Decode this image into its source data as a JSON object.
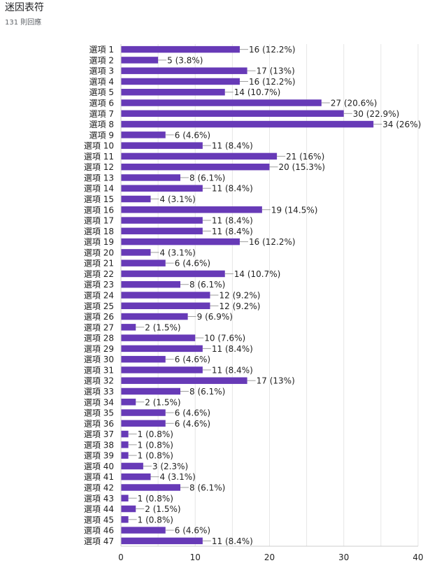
{
  "title": "迷因表符",
  "subtitle": "131 則回應",
  "colors": {
    "bar": "#673ab7",
    "grid": "#e6e6e6",
    "axis": "#cccccc",
    "text": "#222222",
    "label_line": "#9e9e9e"
  },
  "chart_data": {
    "type": "bar",
    "orientation": "horizontal",
    "title": "迷因表符",
    "subtitle": "131 則回應",
    "xlim": [
      0,
      40
    ],
    "x_ticks": [
      "0",
      "10",
      "20",
      "30",
      "40"
    ],
    "grid": true,
    "categories": [
      "選項 1",
      "選項 2",
      "選項 3",
      "選項 4",
      "選項 5",
      "選項 6",
      "選項 7",
      "選項 8",
      "選項 9",
      "選項 10",
      "選項 11",
      "選項 12",
      "選項 13",
      "選項 14",
      "選項 15",
      "選項 16",
      "選項 17",
      "選項 18",
      "選項 19",
      "選項 20",
      "選項 21",
      "選項 22",
      "選項 23",
      "選項 24",
      "選項 25",
      "選項 26",
      "選項 27",
      "選項 28",
      "選項 29",
      "選項 30",
      "選項 31",
      "選項 32",
      "選項 33",
      "選項 34",
      "選項 35",
      "選項 36",
      "選項 37",
      "選項 38",
      "選項 39",
      "選項 40",
      "選項 41",
      "選項 42",
      "選項 43",
      "選項 44",
      "選項 45",
      "選項 46",
      "選項 47"
    ],
    "values": [
      16,
      5,
      17,
      16,
      14,
      27,
      30,
      34,
      6,
      11,
      21,
      20,
      8,
      11,
      4,
      19,
      11,
      11,
      16,
      4,
      6,
      14,
      8,
      12,
      12,
      9,
      2,
      10,
      11,
      6,
      11,
      17,
      8,
      2,
      6,
      6,
      1,
      1,
      1,
      3,
      4,
      8,
      1,
      2,
      1,
      6,
      11
    ],
    "data_labels": [
      "16 (12.2%)",
      "5 (3.8%)",
      "17 (13%)",
      "16 (12.2%)",
      "14 (10.7%)",
      "27 (20.6%)",
      "30 (22.9%)",
      "34 (26%)",
      "6 (4.6%)",
      "11 (8.4%)",
      "21 (16%)",
      "20 (15.3%)",
      "8 (6.1%)",
      "11 (8.4%)",
      "4 (3.1%)",
      "19 (14.5%)",
      "11 (8.4%)",
      "11 (8.4%)",
      "16 (12.2%)",
      "4 (3.1%)",
      "6 (4.6%)",
      "14 (10.7%)",
      "8 (6.1%)",
      "12 (9.2%)",
      "12 (9.2%)",
      "9 (6.9%)",
      "2 (1.5%)",
      "10 (7.6%)",
      "11 (8.4%)",
      "6 (4.6%)",
      "11 (8.4%)",
      "17 (13%)",
      "8 (6.1%)",
      "2 (1.5%)",
      "6 (4.6%)",
      "6 (4.6%)",
      "1 (0.8%)",
      "1 (0.8%)",
      "1 (0.8%)",
      "3 (2.3%)",
      "4 (3.1%)",
      "8 (6.1%)",
      "1 (0.8%)",
      "2 (1.5%)",
      "1 (0.8%)",
      "6 (4.6%)",
      "11 (8.4%)"
    ]
  }
}
